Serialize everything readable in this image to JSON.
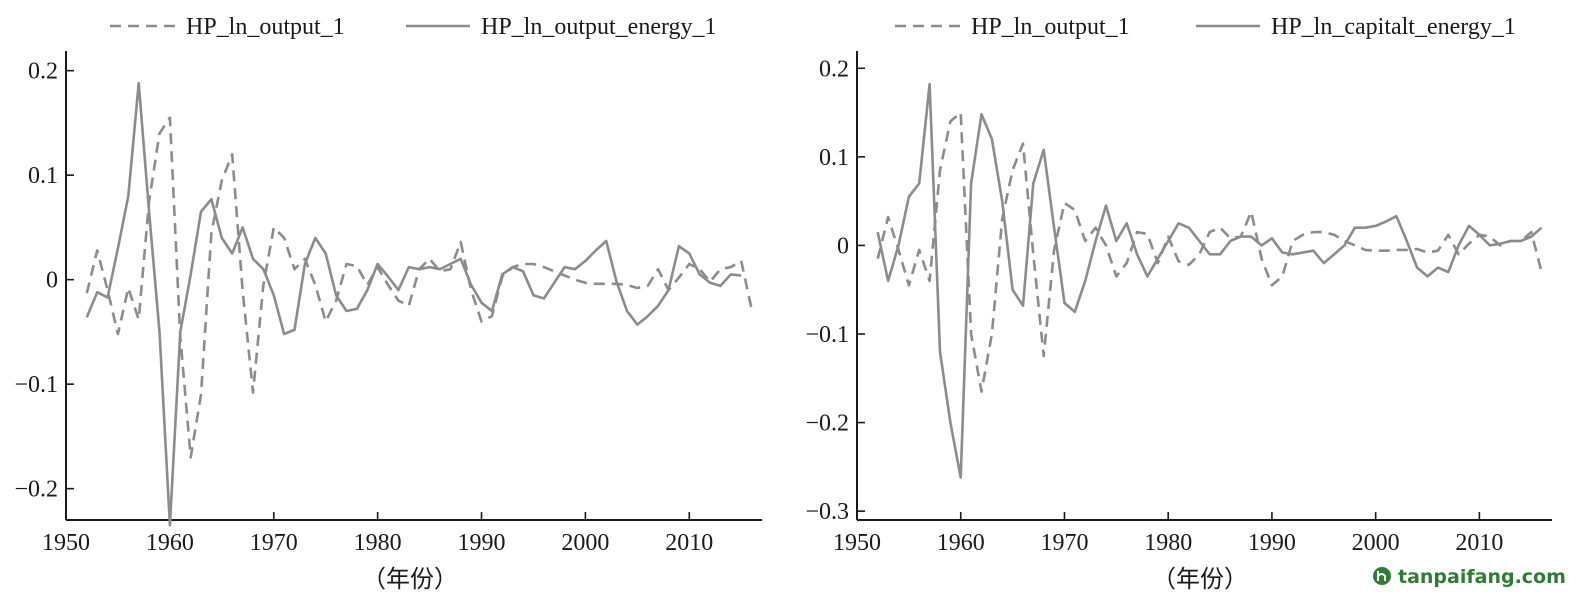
{
  "chart_data": [
    {
      "type": "line",
      "title": "",
      "xlabel": "（年份）",
      "ylabel": "",
      "xlim": [
        1950,
        2017
      ],
      "ylim": [
        -0.23,
        0.215
      ],
      "xticks": [
        1950,
        1960,
        1970,
        1980,
        1990,
        2000,
        2010
      ],
      "yticks": [
        0.2,
        0.1,
        0,
        -0.1,
        -0.2
      ],
      "ytick_labels": [
        "0.2",
        "0.1",
        "0",
        "−0.1",
        "−0.2"
      ],
      "grid": false,
      "legend_position": "top",
      "series": [
        {
          "name": "HP_ln_output_1",
          "style": "dashed",
          "color": "#8c8c8c",
          "x": [
            1952,
            1953,
            1954,
            1955,
            1956,
            1957,
            1958,
            1959,
            1960,
            1961,
            1962,
            1963,
            1964,
            1965,
            1966,
            1967,
            1968,
            1969,
            1970,
            1971,
            1972,
            1973,
            1974,
            1975,
            1976,
            1977,
            1978,
            1979,
            1980,
            1981,
            1982,
            1983,
            1984,
            1985,
            1986,
            1987,
            1988,
            1989,
            1990,
            1991,
            1992,
            1993,
            1994,
            1995,
            1996,
            1997,
            1998,
            1999,
            2000,
            2001,
            2002,
            2003,
            2004,
            2005,
            2006,
            2007,
            2008,
            2009,
            2010,
            2011,
            2012,
            2013,
            2014,
            2015,
            2016
          ],
          "y": [
            -0.013,
            0.028,
            -0.01,
            -0.052,
            -0.008,
            -0.038,
            0.075,
            0.14,
            0.155,
            -0.055,
            -0.17,
            -0.11,
            0.045,
            0.095,
            0.12,
            -0.01,
            -0.108,
            -0.005,
            0.05,
            0.04,
            0.01,
            0.02,
            -0.005,
            -0.04,
            -0.02,
            0.015,
            0.013,
            -0.005,
            0.012,
            -0.005,
            -0.02,
            -0.025,
            0.01,
            0.02,
            0.008,
            0.01,
            0.036,
            -0.01,
            -0.04,
            -0.035,
            0.003,
            0.012,
            0.015,
            0.015,
            0.012,
            0.008,
            0.004,
            0,
            -0.003,
            -0.004,
            -0.004,
            -0.004,
            -0.005,
            -0.008,
            -0.006,
            0.01,
            -0.01,
            0.002,
            0.015,
            0.01,
            -0.002,
            0.01,
            0.012,
            0.018,
            -0.028
          ]
        },
        {
          "name": "HP_ln_output_energy_1",
          "style": "solid",
          "color": "#8c8c8c",
          "x": [
            1952,
            1953,
            1954,
            1955,
            1956,
            1957,
            1958,
            1959,
            1960,
            1961,
            1962,
            1963,
            1964,
            1965,
            1966,
            1967,
            1968,
            1969,
            1970,
            1971,
            1972,
            1973,
            1974,
            1975,
            1976,
            1977,
            1978,
            1979,
            1980,
            1981,
            1982,
            1983,
            1984,
            1985,
            1986,
            1987,
            1988,
            1989,
            1990,
            1991,
            1992,
            1993,
            1994,
            1995,
            1996,
            1997,
            1998,
            1999,
            2000,
            2001,
            2002,
            2003,
            2004,
            2005,
            2006,
            2007,
            2008,
            2009,
            2010,
            2011,
            2012,
            2013,
            2014,
            2015
          ],
          "y": [
            -0.036,
            -0.012,
            -0.017,
            0.03,
            0.08,
            0.188,
            0.065,
            -0.05,
            -0.235,
            -0.05,
            0.005,
            0.065,
            0.077,
            0.04,
            0.025,
            0.05,
            0.02,
            0.01,
            -0.015,
            -0.052,
            -0.048,
            0.015,
            0.04,
            0.025,
            -0.015,
            -0.03,
            -0.028,
            -0.01,
            0.015,
            0.003,
            -0.01,
            0.012,
            0.01,
            0.012,
            0.01,
            0.015,
            0.02,
            -0.005,
            -0.022,
            -0.03,
            0.005,
            0.012,
            0.008,
            -0.015,
            -0.018,
            -0.003,
            0.012,
            0.01,
            0.018,
            0.028,
            0.037,
            -0.002,
            -0.03,
            -0.043,
            -0.035,
            -0.025,
            -0.01,
            0.032,
            0.025,
            0.005,
            -0.003,
            -0.006,
            0.005,
            0.004
          ]
        }
      ]
    },
    {
      "type": "line",
      "title": "",
      "xlabel": "（年份）",
      "ylabel": "",
      "xlim": [
        1950,
        2017
      ],
      "ylim": [
        -0.31,
        0.215
      ],
      "xticks": [
        1950,
        1960,
        1970,
        1980,
        1990,
        2000,
        2010
      ],
      "yticks": [
        0.2,
        0.1,
        0,
        -0.1,
        -0.2,
        -0.3
      ],
      "ytick_labels": [
        "0.2",
        "0.1",
        "0",
        "−0.1",
        "−0.2",
        "−0.3"
      ],
      "grid": false,
      "legend_position": "top",
      "series": [
        {
          "name": "HP_ln_output_1",
          "style": "dashed",
          "color": "#8c8c8c",
          "x": [
            1952,
            1953,
            1954,
            1955,
            1956,
            1957,
            1958,
            1959,
            1960,
            1961,
            1962,
            1963,
            1964,
            1965,
            1966,
            1967,
            1968,
            1969,
            1970,
            1971,
            1972,
            1973,
            1974,
            1975,
            1976,
            1977,
            1978,
            1979,
            1980,
            1981,
            1982,
            1983,
            1984,
            1985,
            1986,
            1987,
            1988,
            1989,
            1990,
            1991,
            1992,
            1993,
            1994,
            1995,
            1996,
            1997,
            1998,
            1999,
            2000,
            2001,
            2002,
            2003,
            2004,
            2005,
            2006,
            2007,
            2008,
            2009,
            2010,
            2011,
            2012,
            2013,
            2014,
            2015,
            2016
          ],
          "y": [
            -0.015,
            0.032,
            -0.005,
            -0.045,
            -0.005,
            -0.04,
            0.085,
            0.14,
            0.15,
            -0.1,
            -0.165,
            -0.1,
            0.03,
            0.085,
            0.115,
            -0.01,
            -0.125,
            -0.005,
            0.048,
            0.04,
            0.005,
            0.02,
            0,
            -0.035,
            -0.02,
            0.015,
            0.013,
            -0.02,
            0.01,
            -0.018,
            -0.022,
            -0.01,
            0.015,
            0.02,
            0.008,
            0.01,
            0.038,
            -0.015,
            -0.045,
            -0.035,
            0.005,
            0.012,
            0.015,
            0.015,
            0.012,
            0.005,
            0,
            -0.005,
            -0.006,
            -0.006,
            -0.005,
            -0.005,
            -0.004,
            -0.008,
            -0.006,
            0.012,
            -0.01,
            0.002,
            0.012,
            0.01,
            0,
            0.005,
            0.005,
            0.015,
            -0.03
          ]
        },
        {
          "name": "HP_ln_capitalt_energy_1",
          "style": "solid",
          "color": "#8c8c8c",
          "x": [
            1952,
            1953,
            1954,
            1955,
            1956,
            1957,
            1958,
            1959,
            1960,
            1961,
            1962,
            1963,
            1964,
            1965,
            1966,
            1967,
            1968,
            1969,
            1970,
            1971,
            1972,
            1973,
            1974,
            1975,
            1976,
            1977,
            1978,
            1979,
            1980,
            1981,
            1982,
            1983,
            1984,
            1985,
            1986,
            1987,
            1988,
            1989,
            1990,
            1991,
            1992,
            1993,
            1994,
            1995,
            1996,
            1997,
            1998,
            1999,
            2000,
            2001,
            2002,
            2003,
            2004,
            2005,
            2006,
            2007,
            2008,
            2009,
            2010,
            2011,
            2012,
            2013,
            2014,
            2015,
            2016
          ],
          "y": [
            0.015,
            -0.04,
            0,
            0.055,
            0.07,
            0.182,
            -0.12,
            -0.2,
            -0.262,
            0.07,
            0.148,
            0.12,
            0.05,
            -0.05,
            -0.068,
            0.07,
            0.108,
            0.02,
            -0.065,
            -0.075,
            -0.04,
            0.005,
            0.045,
            0.005,
            0.025,
            -0.01,
            -0.035,
            -0.015,
            0.005,
            0.025,
            0.02,
            0.005,
            -0.01,
            -0.01,
            0.005,
            0.01,
            0.01,
            0,
            0.008,
            -0.008,
            -0.01,
            -0.008,
            -0.006,
            -0.02,
            -0.01,
            0,
            0.02,
            0.02,
            0.022,
            0.027,
            0.033,
            0.005,
            -0.025,
            -0.035,
            -0.025,
            -0.03,
            0,
            0.022,
            0.012,
            0,
            0.002,
            0.005,
            0.005,
            0.01,
            0.02
          ]
        }
      ]
    }
  ],
  "watermark": {
    "text": "tanpaifang.com",
    "color": "#2e7d32"
  }
}
